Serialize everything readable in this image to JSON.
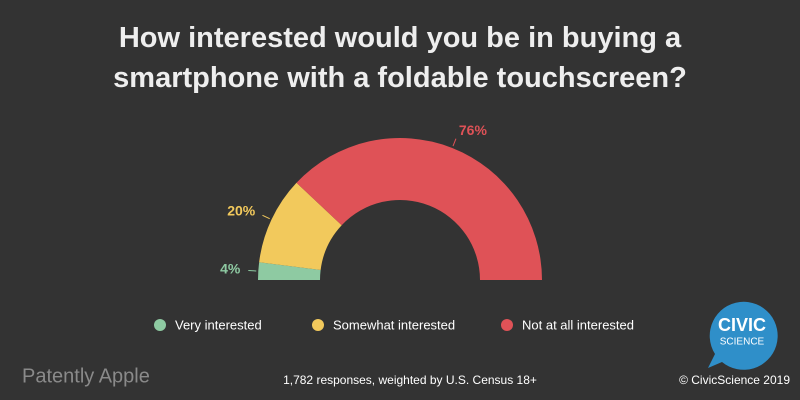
{
  "chart_data": {
    "type": "semi-donut",
    "title": "How interested would you be in buying a smartphone with a foldable touchscreen?",
    "categories": [
      "Very interested",
      "Somewhat interested",
      "Not at all interested"
    ],
    "values": [
      4,
      20,
      76
    ],
    "value_labels": [
      "4%",
      "20%",
      "76%"
    ],
    "colors": [
      "#8ecaa2",
      "#f2c95c",
      "#df5257"
    ],
    "legend": "bottom",
    "source": "1,782 responses, weighted by U.S. Census 18+",
    "credit": "© CivicScience 2019"
  },
  "watermark": "Patently Apple",
  "logo": [
    "CIVIC",
    "SCIENCE"
  ]
}
